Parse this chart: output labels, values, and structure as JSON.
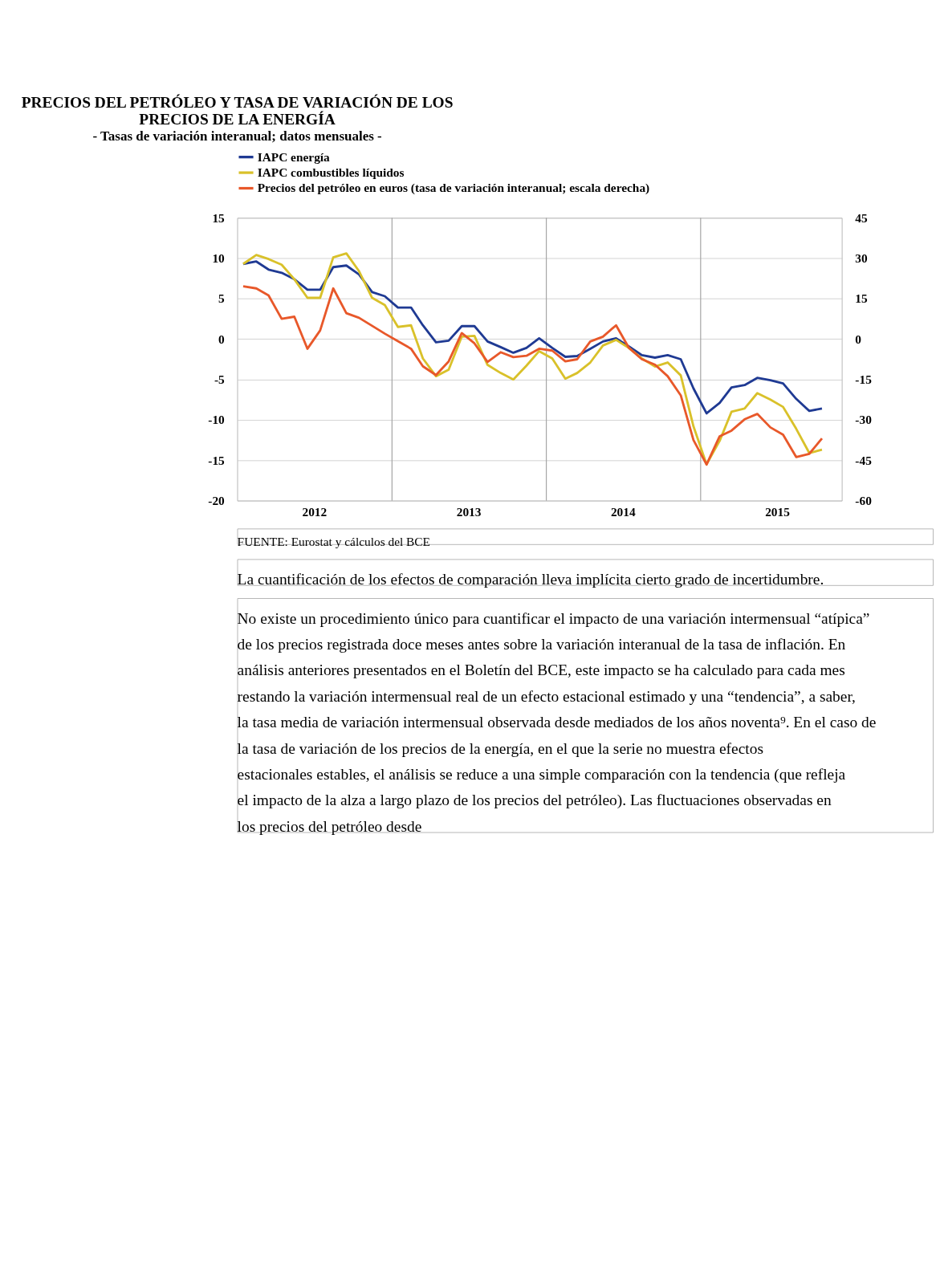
{
  "chart_data": {
    "type": "line",
    "title": "PRECIOS DEL PETRÓLEO Y TASA DE VARIACIÓN DE LOS PRECIOS DE LA ENERGÍA",
    "subtitle": "- Tasas de variación interanual; datos mensuales -",
    "x": [
      "2012-01-15",
      "2012-02-15",
      "2012-03-15",
      "2012-04-15",
      "2012-05-15",
      "2012-06-15",
      "2012-07-15",
      "2012-08-15",
      "2012-09-15",
      "2012-10-15",
      "2012-11-15",
      "2012-12-15",
      "2013-01-15",
      "2013-02-15",
      "2013-03-15",
      "2013-04-15",
      "2013-05-15",
      "2013-06-15",
      "2013-07-15",
      "2013-08-15",
      "2013-09-15",
      "2013-10-15",
      "2013-11-15",
      "2013-12-15",
      "2014-01-15",
      "2014-02-15",
      "2014-03-15",
      "2014-04-15",
      "2014-05-15",
      "2014-06-15",
      "2014-07-15",
      "2014-08-15",
      "2014-09-15",
      "2014-10-15",
      "2014-11-15",
      "2014-12-15",
      "2015-01-15",
      "2015-02-15",
      "2015-03-15",
      "2015-04-15",
      "2015-05-15",
      "2015-06-15",
      "2015-07-15",
      "2015-08-15",
      "2015-09-15",
      "2015-10-15"
    ],
    "series": [
      {
        "name": "IAPC energía",
        "color": "#1f3a93",
        "values": [
          9.3,
          9.6,
          8.6,
          8.2,
          7.4,
          6.1,
          6.1,
          8.9,
          9.1,
          8.0,
          5.8,
          5.3,
          3.9,
          3.9,
          1.7,
          -0.4,
          -0.2,
          1.6,
          1.6,
          -0.3,
          -1.0,
          -1.7,
          -1.1,
          0.1,
          -1.1,
          -2.2,
          -2.1,
          -1.2,
          -0.3,
          0.1,
          -0.9,
          -2.0,
          -2.3,
          -2.0,
          -2.5,
          -6.1,
          -9.2,
          -7.9,
          -6.0,
          -5.7,
          -4.8,
          -5.1,
          -5.5,
          -7.4,
          -8.9,
          -8.6
        ]
      },
      {
        "name": "IAPC combustibles líquidos",
        "color": "#d9c12a",
        "values": [
          9.3,
          10.4,
          9.9,
          9.2,
          7.4,
          5.1,
          5.1,
          10.1,
          10.6,
          8.4,
          5.1,
          4.2,
          1.5,
          1.7,
          -2.4,
          -4.6,
          -3.8,
          0.3,
          0.4,
          -3.2,
          -4.2,
          -5.0,
          -3.3,
          -1.5,
          -2.4,
          -4.9,
          -4.2,
          -2.9,
          -0.8,
          -0.1,
          -1.1,
          -2.4,
          -3.4,
          -2.9,
          -4.5,
          -10.8,
          -15.5,
          -12.6,
          -9.0,
          -8.6,
          -6.7,
          -7.5,
          -8.4,
          -11.1,
          -14.1,
          -13.7
        ]
      },
      {
        "name": "Precios del petróleo en euros (tasa de variación interanual; escala derecha)",
        "color": "#e8582a",
        "axis": "y2",
        "values": [
          19.6,
          18.8,
          16.2,
          7.5,
          8.3,
          -3.6,
          3.2,
          18.8,
          9.6,
          7.9,
          4.9,
          2.0,
          -0.8,
          -3.6,
          -10.1,
          -13.4,
          -8.3,
          2.2,
          -1.6,
          -8.5,
          -4.9,
          -6.7,
          -6.2,
          -3.6,
          -4.3,
          -8.3,
          -7.5,
          -0.9,
          0.9,
          5.1,
          -3.2,
          -7.5,
          -9.5,
          -13.8,
          -20.9,
          -37.5,
          -46.6,
          -36.1,
          -34.0,
          -29.8,
          -27.8,
          -32.8,
          -35.5,
          -43.8,
          -42.6,
          -36.9
        ]
      }
    ],
    "xlim": [
      "2012-01-01",
      "2015-12-01"
    ],
    "xticks": [
      {
        "value": "2012-07-01",
        "label": "2012"
      },
      {
        "value": "2013-07-01",
        "label": "2013"
      },
      {
        "value": "2014-07-01",
        "label": "2014"
      },
      {
        "value": "2015-07-01",
        "label": "2015"
      }
    ],
    "ylim": [
      -20,
      15
    ],
    "yticks": [
      -20,
      -15,
      -10,
      -5,
      0,
      5,
      10,
      15
    ],
    "y2lim": [
      -60,
      45
    ],
    "y2ticks": [
      -60,
      -45,
      -30,
      -15,
      0,
      15,
      30,
      45
    ],
    "ref_lines": [
      {
        "axis": "x",
        "value": "2013-01-01",
        "color": "#a6a6a6"
      },
      {
        "axis": "x",
        "value": "2014-01-01",
        "color": "#a6a6a6"
      },
      {
        "axis": "x",
        "value": "2015-01-01",
        "color": "#a6a6a6"
      }
    ],
    "grid": "y",
    "legend": "top left",
    "marker": "none",
    "line_style": "solid",
    "annotations": [
      "FUENTE: Eurostat y cálculos del BCE",
      "La cuantificación de los efectos de comparación lleva implícita cierto grado de incertidumbre.",
      "No existe un procedimiento único para cuantificar el impacto de una variación intermensual “atípica” de los precios registrada doce meses antes sobre la variación interanual de la tasa de inflación. En análisis anteriores presentados en el Boletín del BCE, este impacto se ha calculado para cada mes restando la variación intermensual real de un efecto estacional estimado y una “tendencia”, a saber, la tasa media de variación intermensual observada desde mediados de los años noventa⁹. En el caso de la tasa de variación de los precios de la energía, en el que la serie no muestra efectos estacionales estables, el análisis se reduce a una simple comparación con la tendencia (que refleja el impacto de la alza a largo plazo de los precios del petróleo). Las fluctuaciones observadas en los precios del petróleo desde"
    ]
  }
}
